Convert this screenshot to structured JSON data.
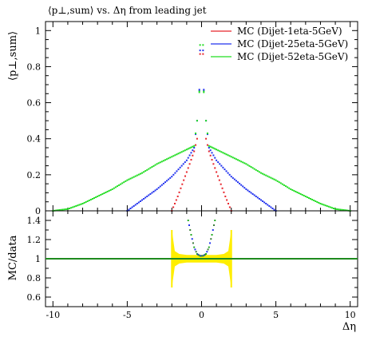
{
  "chart_data": [
    {
      "type": "scatter",
      "panel": "main",
      "title": "⟨p⊥,sum⟩ vs. Δη from leading jet",
      "ylabel": "⟨p⊥,sum⟩",
      "xlim": [
        -10.5,
        10.5
      ],
      "ylim": [
        0,
        1.05
      ],
      "xticks": [
        -10,
        -5,
        0,
        5,
        10
      ],
      "yticks": [
        0,
        0.2,
        0.4,
        0.6,
        0.8,
        1
      ],
      "legend_position": "top-right",
      "series": [
        {
          "name": "MC (Dijet-1eta-5GeV)",
          "color": "#e8242b",
          "x": [
            -2.0,
            -1.6,
            -1.2,
            -0.8,
            -0.5,
            -0.3,
            -0.1,
            0.1,
            0.3,
            0.5,
            0.8,
            1.2,
            1.6,
            2.0
          ],
          "y": [
            0.0,
            0.08,
            0.17,
            0.26,
            0.33,
            0.4,
            0.87,
            0.87,
            0.4,
            0.33,
            0.26,
            0.17,
            0.08,
            0.0
          ]
        },
        {
          "name": "MC (Dijet-25eta-5GeV)",
          "color": "#2233ee",
          "x": [
            -5.0,
            -4.0,
            -3.0,
            -2.0,
            -1.0,
            -0.5,
            -0.3,
            -0.1,
            0.1,
            0.3,
            0.5,
            1.0,
            2.0,
            3.0,
            4.0,
            5.0
          ],
          "y": [
            0.0,
            0.06,
            0.12,
            0.19,
            0.28,
            0.35,
            0.5,
            0.89,
            0.89,
            0.5,
            0.35,
            0.28,
            0.19,
            0.12,
            0.06,
            0.0
          ],
          "extra": [
            {
              "x": -0.15,
              "y": 0.67
            },
            {
              "x": 0.15,
              "y": 0.67
            }
          ]
        },
        {
          "name": "MC (Dijet-52eta-5GeV)",
          "color": "#22dd22",
          "x": [
            -10.0,
            -9.0,
            -8.0,
            -7.0,
            -6.0,
            -5.0,
            -4.0,
            -3.0,
            -2.0,
            -1.0,
            -0.5,
            -0.3,
            -0.1,
            0.1,
            0.3,
            0.5,
            1.0,
            2.0,
            3.0,
            4.0,
            5.0,
            6.0,
            7.0,
            8.0,
            9.0,
            10.0
          ],
          "y": [
            0.0,
            0.01,
            0.04,
            0.08,
            0.12,
            0.17,
            0.21,
            0.26,
            0.3,
            0.34,
            0.36,
            0.5,
            0.92,
            0.92,
            0.5,
            0.36,
            0.34,
            0.3,
            0.26,
            0.21,
            0.17,
            0.12,
            0.08,
            0.04,
            0.01,
            0.0
          ],
          "extra": [
            {
              "x": -0.15,
              "y": 0.66
            },
            {
              "x": 0.15,
              "y": 0.66
            }
          ]
        }
      ]
    },
    {
      "type": "scatter",
      "panel": "ratio",
      "xlabel": "Δη",
      "ylabel": "MC/data",
      "xlim": [
        -10.5,
        10.5
      ],
      "ylim": [
        0.5,
        1.5
      ],
      "xticks": [
        -10,
        -5,
        0,
        5,
        10
      ],
      "xtick_labels": [
        "-10",
        "-5",
        "0",
        "5",
        "10"
      ],
      "yticks": [
        0.6,
        0.8,
        1,
        1.2,
        1.4
      ],
      "reference_line": 1,
      "reference_color": "#1e8a1e",
      "data_band": {
        "color": "#ffee00",
        "x": [
          -2.0,
          -1.8,
          -1.5,
          -1.0,
          -0.5,
          0.0,
          0.5,
          1.0,
          1.5,
          1.8,
          2.0
        ],
        "low": [
          0.7,
          0.92,
          0.95,
          0.96,
          0.96,
          0.96,
          0.96,
          0.96,
          0.95,
          0.92,
          0.7
        ],
        "high": [
          1.3,
          1.08,
          1.05,
          1.04,
          1.04,
          1.04,
          1.04,
          1.04,
          1.05,
          1.08,
          1.3
        ]
      },
      "ratio_points": {
        "color": "#3a7a3a",
        "x": [
          -0.9,
          -0.7,
          -0.5,
          -0.3,
          -0.1,
          0.1,
          0.3,
          0.5,
          0.7,
          0.9
        ],
        "y": [
          1.4,
          1.25,
          1.12,
          1.05,
          1.03,
          1.03,
          1.05,
          1.12,
          1.25,
          1.4
        ]
      }
    }
  ]
}
